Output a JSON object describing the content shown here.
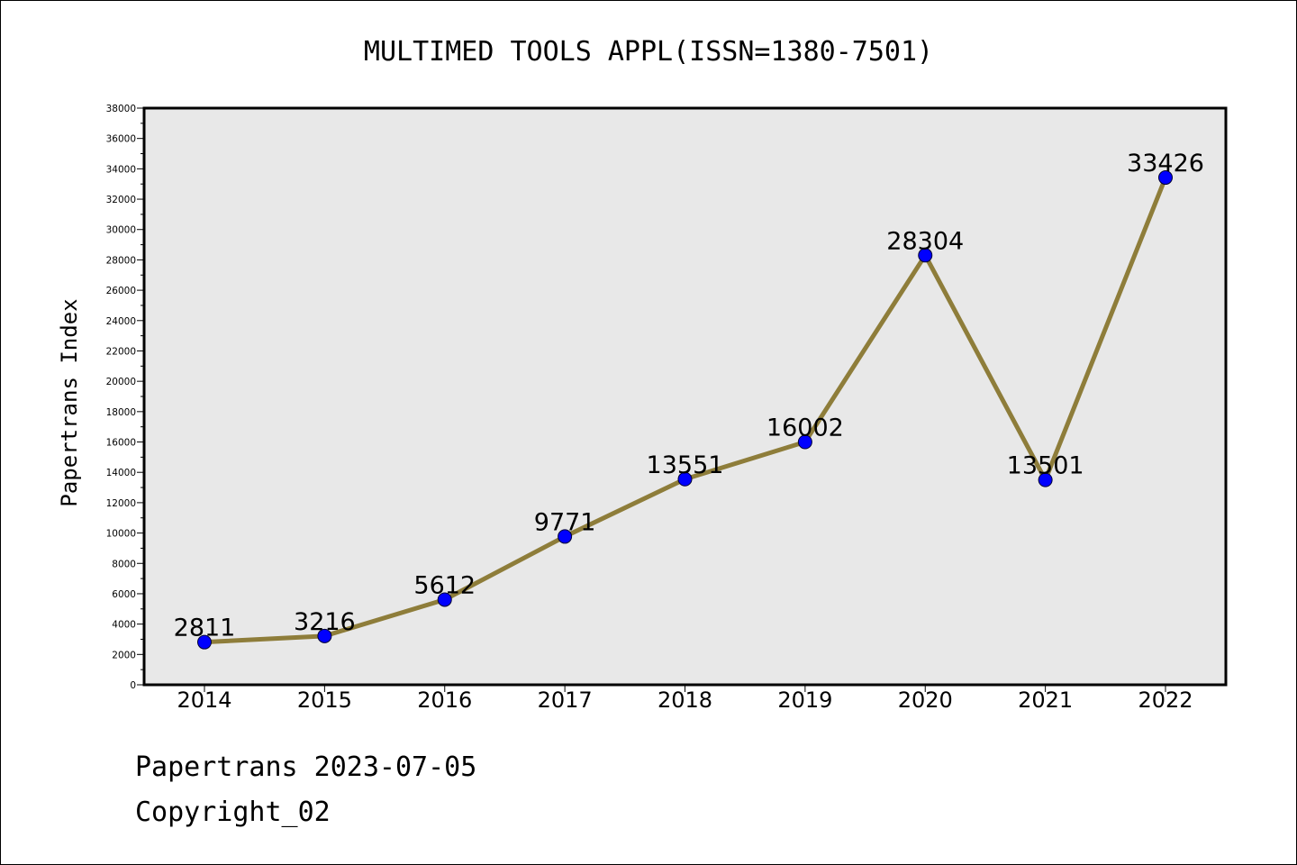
{
  "chart_data": {
    "type": "line",
    "title": "MULTIMED TOOLS APPL(ISSN=1380-7501)",
    "xlabel": "",
    "ylabel": "Papertrans Index",
    "categories": [
      "2014",
      "2015",
      "2016",
      "2017",
      "2018",
      "2019",
      "2020",
      "2021",
      "2022"
    ],
    "series": [
      {
        "values": [
          2811,
          3216,
          5612,
          9771,
          13551,
          16002,
          28304,
          13501,
          33426
        ],
        "line_color": "#8e7d3a",
        "marker_color": "#0000ff"
      }
    ],
    "data_labels": [
      "2811",
      "3216",
      "5612",
      "9771",
      "13551",
      "16002",
      "28304",
      "13501",
      "33426"
    ],
    "ylim": [
      0,
      38000
    ],
    "yticks": [
      0,
      2000,
      4000,
      6000,
      8000,
      10000,
      12000,
      14000,
      16000,
      18000,
      20000,
      22000,
      24000,
      26000,
      28000,
      30000,
      32000,
      34000,
      36000,
      38000
    ],
    "grid": false,
    "plot_background": "#e8e8e8"
  },
  "footer": {
    "line1": "Papertrans 2023-07-05",
    "line2": "Copyright_02"
  }
}
